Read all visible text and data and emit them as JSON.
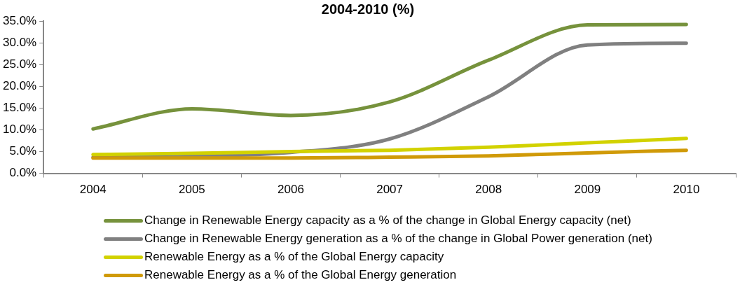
{
  "chart_data": {
    "type": "line",
    "title": "2004-2010 (%)",
    "categories": [
      "2004",
      "2005",
      "2006",
      "2007",
      "2008",
      "2009",
      "2010"
    ],
    "series": [
      {
        "name": "Change in Renewable Energy capacity as a % of the change in Global Energy capacity (net)",
        "color": "#76923c",
        "values": [
          10.2,
          14.8,
          13.3,
          16.4,
          26.0,
          34.1,
          34.2
        ]
      },
      {
        "name": "Change in Renewable Energy generation as a % of the change in Global Power generation (net)",
        "color": "#808080",
        "values": [
          3.7,
          3.9,
          4.8,
          7.9,
          17.6,
          29.5,
          29.9
        ]
      },
      {
        "name": "Renewable Energy as a % of the Global Energy capacity",
        "color": "#d2d200",
        "values": [
          4.3,
          4.6,
          5.0,
          5.3,
          6.0,
          7.0,
          8.0
        ]
      },
      {
        "name": "Renewable Energy as a % of the Global Energy generation",
        "color": "#d09a08",
        "values": [
          3.5,
          3.5,
          3.5,
          3.7,
          4.0,
          4.7,
          5.3
        ]
      }
    ],
    "ylim": [
      0,
      35
    ],
    "yticks": [
      {
        "value": 0,
        "label": "0.0%"
      },
      {
        "value": 5,
        "label": "5.0%"
      },
      {
        "value": 10,
        "label": "10.0%"
      },
      {
        "value": 15,
        "label": "15.0%"
      },
      {
        "value": 20,
        "label": "20.0%"
      },
      {
        "value": 25,
        "label": "25.0%"
      },
      {
        "value": 30,
        "label": "30.0%"
      },
      {
        "value": 35,
        "label": "35.0%"
      }
    ],
    "grid": false,
    "legend": "bottom",
    "marker": "none",
    "line_style": "solid"
  }
}
